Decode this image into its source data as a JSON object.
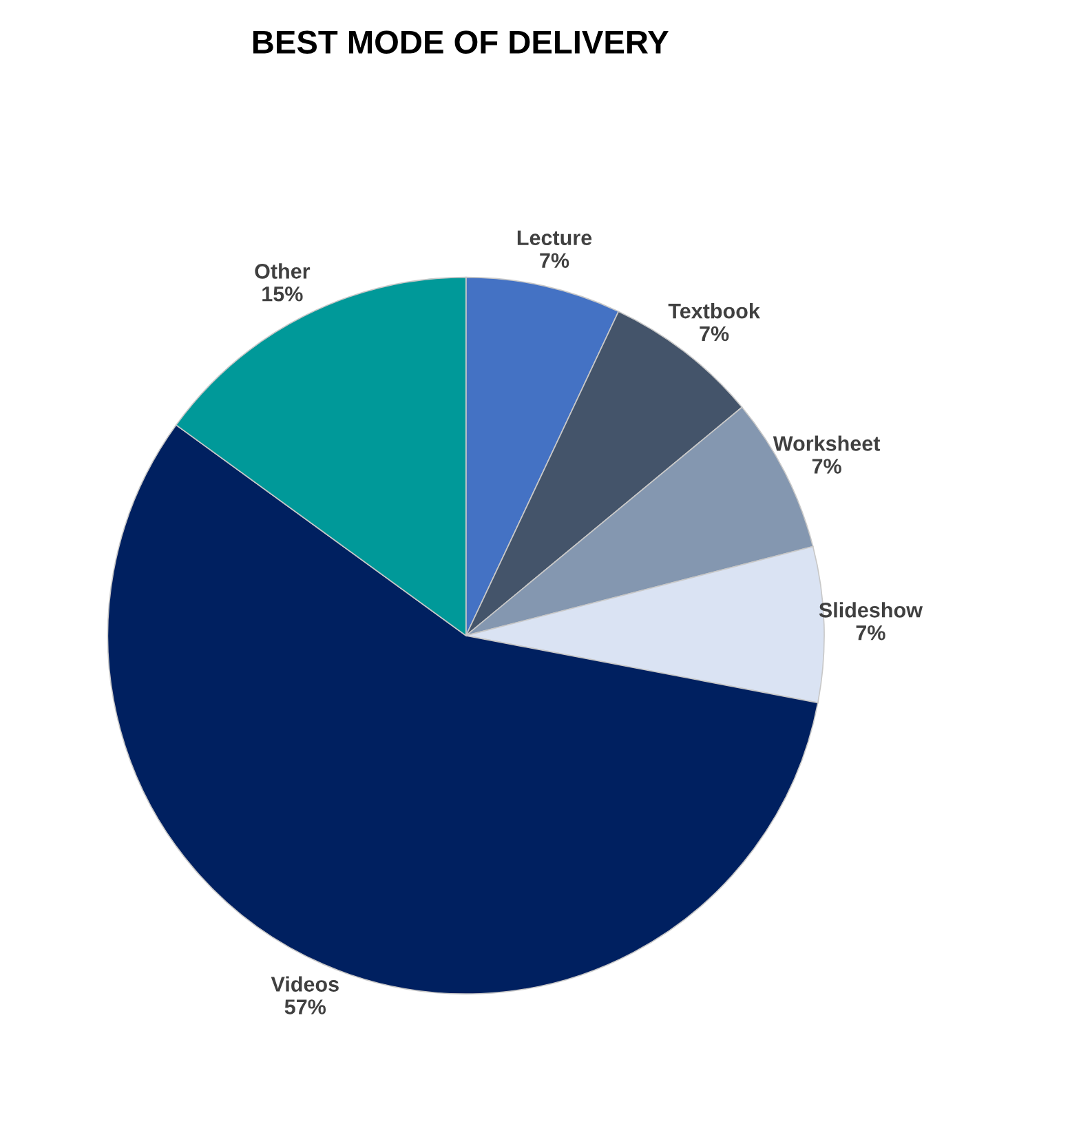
{
  "chart_data": {
    "type": "pie",
    "title": "BEST MODE OF DELIVERY",
    "categories": [
      "Lecture",
      "Textbook",
      "Worksheet",
      "Slideshow",
      "Videos",
      "Other"
    ],
    "values": [
      7,
      7,
      7,
      7,
      57,
      15
    ],
    "value_labels": [
      "7%",
      "7%",
      "7%",
      "7%",
      "57%",
      "15%"
    ],
    "colors": [
      "#4472c4",
      "#44546a",
      "#8497b0",
      "#dae3f3",
      "#002060",
      "#009999"
    ],
    "legend": false
  }
}
